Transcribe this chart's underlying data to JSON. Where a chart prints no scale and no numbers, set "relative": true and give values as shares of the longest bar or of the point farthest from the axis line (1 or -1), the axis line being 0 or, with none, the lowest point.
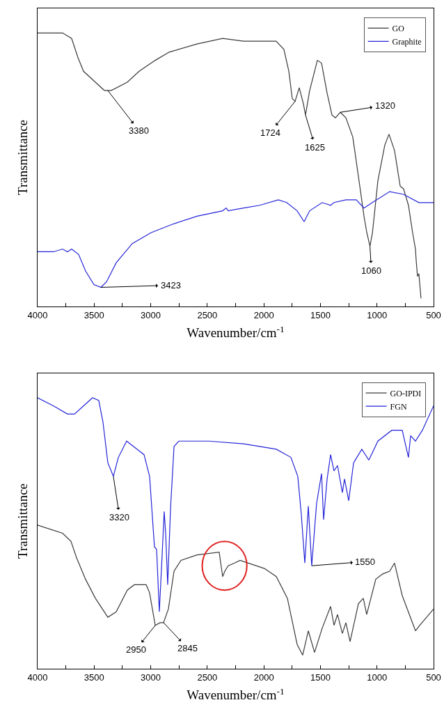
{
  "chart_data": [
    {
      "type": "line",
      "xlabel": "Wavenumber/cm$^{-1}$",
      "ylabel": "Transmittance",
      "relative": true,
      "legend": "top right",
      "xlim": [
        4000,
        500
      ],
      "xticks": [
        4000,
        {
          "value": 3750,
          "label": null
        },
        3500,
        {
          "value": 3250,
          "label": null
        },
        3000,
        {
          "value": 2750,
          "label": null
        },
        2500,
        {
          "value": 2250,
          "label": null
        },
        2000,
        {
          "value": 1750,
          "label": null
        },
        1500,
        {
          "value": 1250,
          "label": null
        },
        1000,
        {
          "value": 750,
          "label": null
        },
        500
      ],
      "series": [
        {
          "name": "GO",
          "color": "#3a3a3a",
          "x": [
            4000,
            3779,
            3699,
            3643,
            3594,
            3489,
            3410,
            3348,
            3207,
            3102,
            2960,
            2837,
            2591,
            2364,
            2179,
            2099,
            1892,
            1823,
            1779,
            1749,
            1724,
            1687,
            1650,
            1632,
            1595,
            1527,
            1490,
            1441,
            1398,
            1367,
            1324,
            1275,
            1214,
            1152,
            1115,
            1090,
            1062,
            1040,
            992,
            931,
            894,
            845,
            795,
            765,
            722,
            685,
            660,
            654,
            642,
            630,
            611
          ],
          "values": [
            1.0,
            1.0,
            0.98,
            0.91,
            0.86,
            0.82,
            0.79,
            0.79,
            0.82,
            0.86,
            0.9,
            0.93,
            0.96,
            0.98,
            0.97,
            0.97,
            0.97,
            0.94,
            0.86,
            0.76,
            0.75,
            0.8,
            0.74,
            0.7,
            0.79,
            0.9,
            0.89,
            0.78,
            0.7,
            0.69,
            0.71,
            0.69,
            0.62,
            0.44,
            0.33,
            0.27,
            0.22,
            0.27,
            0.46,
            0.59,
            0.63,
            0.57,
            0.44,
            0.43,
            0.37,
            0.27,
            0.21,
            0.17,
            0.11,
            0.12,
            0.03
          ]
        },
        {
          "name": "Graphite",
          "color": "#2424d8",
          "x": [
            4000,
            3859,
            3779,
            3736,
            3699,
            3637,
            3576,
            3502,
            3440,
            3391,
            3305,
            3163,
            2997,
            2813,
            2591,
            2364,
            2333,
            2315,
            2179,
            2038,
            1872,
            1798,
            1706,
            1644,
            1595,
            1484,
            1410,
            1380,
            1275,
            1183,
            1115,
            1041,
            888,
            765,
            630,
            500
          ],
          "values": [
            0.2,
            0.2,
            0.21,
            0.2,
            0.21,
            0.19,
            0.13,
            0.08,
            0.07,
            0.09,
            0.16,
            0.23,
            0.27,
            0.3,
            0.33,
            0.35,
            0.36,
            0.35,
            0.36,
            0.37,
            0.39,
            0.38,
            0.35,
            0.31,
            0.35,
            0.38,
            0.37,
            0.38,
            0.39,
            0.39,
            0.36,
            0.38,
            0.42,
            0.41,
            0.38,
            0.38
          ]
        }
      ],
      "annotations": [
        {
          "text": "3380",
          "x": 3380,
          "y": 0.79
        },
        {
          "text": "1724",
          "x": 1724,
          "y": 0.75
        },
        {
          "text": "1625",
          "x": 1632,
          "y": 0.7
        },
        {
          "text": "1320",
          "x": 1324,
          "y": 0.71
        },
        {
          "text": "1060",
          "x": 1062,
          "y": 0.22
        },
        {
          "text": "3423",
          "x": 3440,
          "y": 0.07
        }
      ]
    },
    {
      "type": "line",
      "xlabel": "Wavenumber/cm$^{-1}$",
      "ylabel": "Transmittance",
      "relative": true,
      "legend": "top right",
      "xlim": [
        4000,
        500
      ],
      "xticks": [
        4000,
        {
          "value": 3750,
          "label": null
        },
        3500,
        {
          "value": 3250,
          "label": null
        },
        3000,
        {
          "value": 2750,
          "label": null
        },
        2500,
        {
          "value": 2250,
          "label": null
        },
        2000,
        {
          "value": 1750,
          "label": null
        },
        1500,
        {
          "value": 1250,
          "label": null
        },
        1000,
        {
          "value": 750,
          "label": null
        },
        500
      ],
      "series": [
        {
          "name": "GO-IPDI",
          "color": "#3a3a3a",
          "x": [
            4000,
            3779,
            3705,
            3656,
            3576,
            3489,
            3379,
            3305,
            3207,
            3145,
            3040,
            3010,
            2960,
            2917,
            2887,
            2844,
            2794,
            2733,
            2591,
            2395,
            2364,
            2345,
            2315,
            2259,
            2210,
            1995,
            1890,
            1792,
            1706,
            1657,
            1607,
            1552,
            1484,
            1410,
            1380,
            1349,
            1306,
            1275,
            1238,
            1164,
            1121,
            1091,
            1011,
            949,
            888,
            845,
            777,
            660,
            623,
            500
          ],
          "values": [
            0.53,
            0.5,
            0.47,
            0.41,
            0.33,
            0.26,
            0.19,
            0.21,
            0.29,
            0.31,
            0.31,
            0.28,
            0.16,
            0.17,
            0.17,
            0.22,
            0.36,
            0.4,
            0.42,
            0.43,
            0.34,
            0.36,
            0.38,
            0.39,
            0.4,
            0.37,
            0.34,
            0.26,
            0.09,
            0.05,
            0.14,
            0.06,
            0.15,
            0.23,
            0.16,
            0.2,
            0.13,
            0.17,
            0.1,
            0.24,
            0.26,
            0.2,
            0.33,
            0.35,
            0.36,
            0.39,
            0.27,
            0.14,
            0.16,
            0.22
          ]
        },
        {
          "name": "FGN",
          "color": "#2424d8",
          "x": [
            4000,
            3859,
            3736,
            3674,
            3594,
            3514,
            3459,
            3422,
            3379,
            3330,
            3286,
            3213,
            3120,
            3059,
            3010,
            2967,
            2948,
            2924,
            2899,
            2881,
            2868,
            2850,
            2825,
            2794,
            2751,
            2487,
            2179,
            1890,
            1761,
            1700,
            1669,
            1638,
            1607,
            1577,
            1534,
            1490,
            1472,
            1441,
            1410,
            1380,
            1349,
            1306,
            1287,
            1250,
            1207,
            1134,
            1072,
            992,
            869,
            777,
            722,
            703,
            660,
            599,
            500
          ],
          "values": [
            1.0,
            0.97,
            0.94,
            0.94,
            0.97,
            1.0,
            0.99,
            0.91,
            0.76,
            0.71,
            0.78,
            0.84,
            0.81,
            0.79,
            0.71,
            0.45,
            0.44,
            0.21,
            0.42,
            0.58,
            0.5,
            0.31,
            0.59,
            0.82,
            0.84,
            0.84,
            0.83,
            0.81,
            0.78,
            0.71,
            0.57,
            0.39,
            0.6,
            0.38,
            0.61,
            0.72,
            0.55,
            0.7,
            0.79,
            0.73,
            0.75,
            0.65,
            0.7,
            0.62,
            0.76,
            0.81,
            0.77,
            0.84,
            0.88,
            0.88,
            0.78,
            0.86,
            0.84,
            0.88,
            0.97
          ]
        }
      ],
      "annotations": [
        {
          "text": "3320",
          "x": 3330,
          "y": 0.71
        },
        {
          "text": "2950",
          "x": 2960,
          "y": 0.16
        },
        {
          "text": "2845",
          "x": 2887,
          "y": 0.17
        },
        {
          "text": "1550",
          "x": 1577,
          "y": 0.38
        }
      ]
    }
  ]
}
